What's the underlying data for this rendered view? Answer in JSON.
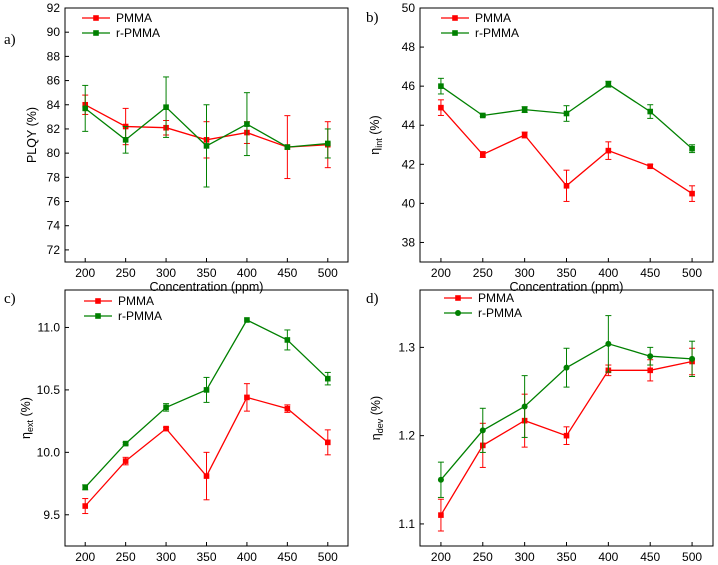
{
  "chart_data": [
    {
      "type": "line",
      "panel_label": "a)",
      "x": [
        200,
        250,
        300,
        350,
        400,
        450,
        500
      ],
      "xlabel": "Concentration (ppm)",
      "ylabel": "PLQY (%)",
      "ylabel_main": "PLQY (%)",
      "ylabel_sub": "",
      "ylabel_tail": "",
      "xlim": [
        175,
        525
      ],
      "ylim": [
        71,
        92
      ],
      "yticks": [
        72,
        74,
        76,
        78,
        80,
        82,
        84,
        86,
        88,
        90,
        92
      ],
      "xticks": [
        200,
        250,
        300,
        350,
        400,
        450,
        500
      ],
      "legend_position": "top-left",
      "series": [
        {
          "name": "PMMA",
          "color": "#ff0000",
          "marker": "square",
          "values": [
            84.0,
            82.2,
            82.1,
            81.1,
            81.7,
            80.5,
            80.7
          ],
          "errors": [
            0.8,
            1.5,
            0.6,
            1.5,
            0.9,
            2.6,
            1.9
          ]
        },
        {
          "name": "r-PMMA",
          "color": "#008000",
          "marker": "square",
          "values": [
            83.7,
            81.1,
            83.8,
            80.6,
            82.4,
            80.5,
            80.8
          ],
          "errors": [
            1.9,
            1.1,
            2.5,
            3.4,
            2.6,
            0.0,
            1.2
          ]
        }
      ]
    },
    {
      "type": "line",
      "panel_label": "b)",
      "x": [
        200,
        250,
        300,
        350,
        400,
        450,
        500
      ],
      "xlabel": "Concentration (ppm)",
      "ylabel": "ηint (%)",
      "ylabel_main": "η",
      "ylabel_sub": "int",
      "ylabel_tail": " (%)",
      "xlim": [
        175,
        525
      ],
      "ylim": [
        37,
        50
      ],
      "yticks": [
        38,
        40,
        42,
        44,
        46,
        48,
        50
      ],
      "xticks": [
        200,
        250,
        300,
        350,
        400,
        450,
        500
      ],
      "legend_position": "top-left",
      "series": [
        {
          "name": "PMMA",
          "color": "#ff0000",
          "marker": "square",
          "values": [
            44.9,
            42.5,
            43.5,
            40.9,
            42.7,
            41.9,
            40.5
          ],
          "errors": [
            0.4,
            0.15,
            0.15,
            0.8,
            0.45,
            0.1,
            0.4
          ]
        },
        {
          "name": "r-PMMA",
          "color": "#008000",
          "marker": "square",
          "values": [
            46.0,
            44.5,
            44.8,
            44.6,
            46.1,
            44.7,
            42.8
          ],
          "errors": [
            0.4,
            0.05,
            0.15,
            0.4,
            0.15,
            0.35,
            0.2
          ]
        }
      ]
    },
    {
      "type": "line",
      "panel_label": "c)",
      "x": [
        200,
        250,
        300,
        350,
        400,
        450,
        500
      ],
      "xlabel": "Concentration (ppm)",
      "ylabel": "ηext (%)",
      "ylabel_main": "η",
      "ylabel_sub": "ext",
      "ylabel_tail": " (%)",
      "xlim": [
        175,
        525
      ],
      "ylim": [
        9.25,
        11.3
      ],
      "yticks": [
        9.5,
        10.0,
        10.5,
        11.0
      ],
      "xticks": [
        200,
        250,
        300,
        350,
        400,
        450,
        500
      ],
      "legend_position": "top-left",
      "series": [
        {
          "name": "PMMA",
          "color": "#ff0000",
          "marker": "square",
          "values": [
            9.57,
            9.93,
            10.19,
            9.81,
            10.44,
            10.35,
            10.08
          ],
          "errors": [
            0.06,
            0.03,
            0.01,
            0.19,
            0.11,
            0.03,
            0.1
          ]
        },
        {
          "name": "r-PMMA",
          "color": "#008000",
          "marker": "square",
          "values": [
            9.72,
            10.07,
            10.36,
            10.5,
            11.06,
            10.9,
            10.59
          ],
          "errors": [
            0.02,
            0.01,
            0.03,
            0.1,
            0.0,
            0.08,
            0.05
          ]
        }
      ]
    },
    {
      "type": "line",
      "panel_label": "d)",
      "x": [
        200,
        250,
        300,
        350,
        400,
        450,
        500
      ],
      "xlabel": "Concentration (ppm)",
      "ylabel": "ηdev (%)",
      "ylabel_main": "η",
      "ylabel_sub": "dev",
      "ylabel_tail": " (%)",
      "xlim": [
        175,
        525
      ],
      "ylim": [
        1.075,
        1.365
      ],
      "yticks": [
        1.1,
        1.2,
        1.3
      ],
      "xticks": [
        200,
        250,
        300,
        350,
        400,
        450,
        500
      ],
      "legend_position": "top-left",
      "series": [
        {
          "name": "PMMA",
          "color": "#ff0000",
          "marker": "square",
          "values": [
            1.11,
            1.189,
            1.217,
            1.2,
            1.274,
            1.274,
            1.284
          ],
          "errors": [
            0.018,
            0.025,
            0.03,
            0.01,
            0.006,
            0.012,
            0.015
          ]
        },
        {
          "name": "r-PMMA",
          "color": "#008000",
          "marker": "circle",
          "values": [
            1.15,
            1.206,
            1.233,
            1.277,
            1.304,
            1.29,
            1.287
          ],
          "errors": [
            0.02,
            0.025,
            0.035,
            0.022,
            0.032,
            0.01,
            0.02
          ]
        }
      ]
    }
  ]
}
